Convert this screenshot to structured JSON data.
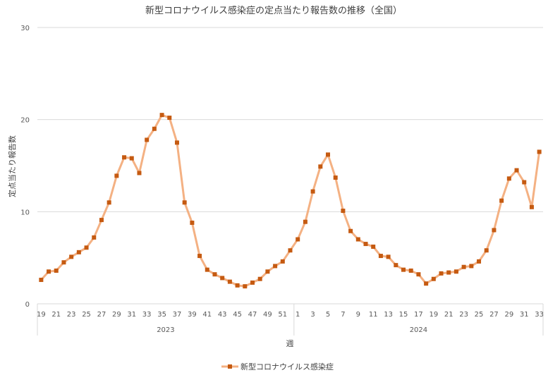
{
  "chart_data": {
    "type": "line",
    "title": "新型コロナウイルス感染症の定点当たり報告数の推移（全国）",
    "xlabel": "週",
    "ylabel": "定点当たり報告数",
    "ylim": [
      0,
      30
    ],
    "yticks": [
      0,
      10,
      20,
      30
    ],
    "grid": true,
    "legend_position": "bottom",
    "color": "#F4B183",
    "marker_color": "#C55A11",
    "years": [
      {
        "label": "2023",
        "weeks": [
          19,
          20,
          21,
          22,
          23,
          24,
          25,
          26,
          27,
          28,
          29,
          30,
          31,
          32,
          33,
          34,
          35,
          36,
          37,
          38,
          39,
          40,
          41,
          42,
          43,
          44,
          45,
          46,
          47,
          48,
          49,
          50,
          51,
          52
        ]
      },
      {
        "label": "2024",
        "weeks": [
          1,
          2,
          3,
          4,
          5,
          6,
          7,
          8,
          9,
          10,
          11,
          12,
          13,
          14,
          15,
          16,
          17,
          18,
          19,
          20,
          21,
          22,
          23,
          24,
          25,
          26,
          27,
          28,
          29,
          30,
          31,
          32,
          33
        ]
      }
    ],
    "series": [
      {
        "name": "新型コロナウイルス感染症",
        "values": [
          2.6,
          3.5,
          3.6,
          4.5,
          5.1,
          5.6,
          6.1,
          7.2,
          9.1,
          11.0,
          13.9,
          15.9,
          15.8,
          14.2,
          17.8,
          19.0,
          20.5,
          20.2,
          17.5,
          11.0,
          8.8,
          5.2,
          3.7,
          3.2,
          2.8,
          2.4,
          2.0,
          1.9,
          2.3,
          2.7,
          3.5,
          4.1,
          4.6,
          5.8,
          7.0,
          8.9,
          12.2,
          14.9,
          16.2,
          13.7,
          10.1,
          7.9,
          7.0,
          6.5,
          6.2,
          5.2,
          5.1,
          4.2,
          3.7,
          3.6,
          3.2,
          2.2,
          2.7,
          3.3,
          3.4,
          3.5,
          4.0,
          4.1,
          4.6,
          5.8,
          8.0,
          11.2,
          13.6,
          14.5,
          13.2,
          10.5,
          16.5
        ]
      }
    ]
  }
}
